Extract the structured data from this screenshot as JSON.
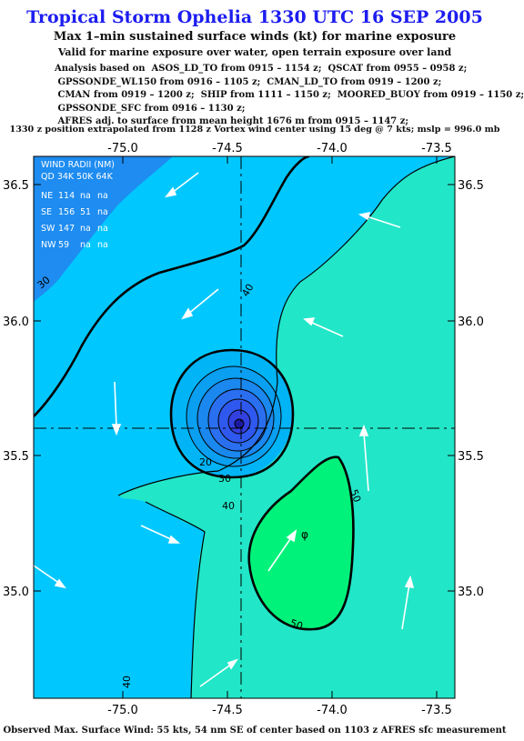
{
  "title": "Tropical Storm Ophelia 1330 UTC 16 SEP 2005",
  "subtitle1": "Max 1–min sustained surface winds (kt) for marine exposure",
  "subtitle2": "Valid for marine exposure over water, open terrain exposure over land",
  "analysis_lines": [
    "Analysis based on  ASOS_LD_TO from 0915 – 1154 z;  QSCAT from 0955 – 0958 z;",
    " GPSSONDE_WL150 from 0916 – 1105 z;  CMAN_LD_TO from 0919 – 1200 z;",
    " CMAN from 0919 – 1200 z;  SHIP from 1111 – 1150 z;  MOORED_BUOY from 0919 – 1150 z;",
    " GPSSONDE_SFC from 0916 – 1130 z;",
    " AFRES adj. to surface from mean height 1676 m from 0915 – 1147 z;"
  ],
  "position_note": "1330 z position extrapolated from 1128 z Vortex wind center using 15 deg @ 7 kts; mslp = 996.0 mb",
  "footer": "Observed Max. Surface Wind: 55 kts, 54 nm SE of center based on 1103 z AFRES sfc measurement",
  "axes": {
    "lon_ticks": [
      "-75.0",
      "-74.5",
      "-74.0",
      "-73.5"
    ],
    "lat_ticks": [
      "36.5",
      "36.0",
      "35.5",
      "35.0"
    ]
  },
  "wind_radii": {
    "header": "WIND RADII (NM)",
    "columns": "QD 34K 50K 64K",
    "rows": [
      {
        "qd": "NE",
        "r34": "114",
        "r50": "na",
        "r64": "na"
      },
      {
        "qd": "SE",
        "r34": "156",
        "r50": "51",
        "r64": "na"
      },
      {
        "qd": "SW",
        "r34": "147",
        "r50": "na",
        "r64": "na"
      },
      {
        "qd": "NW",
        "r34": "59",
        "r50": "na",
        "r64": "na"
      }
    ]
  },
  "contour_labels": [
    "30",
    "40",
    "20",
    "30",
    "40",
    "50",
    "50",
    "40"
  ],
  "colors": {
    "title": "#1d1df0",
    "wind_30_40": "#00c8ff",
    "wind_below_30": "#1e8cf0",
    "wind_40_50": "#22e6c8",
    "wind_50_plus": "#00f27a"
  }
}
